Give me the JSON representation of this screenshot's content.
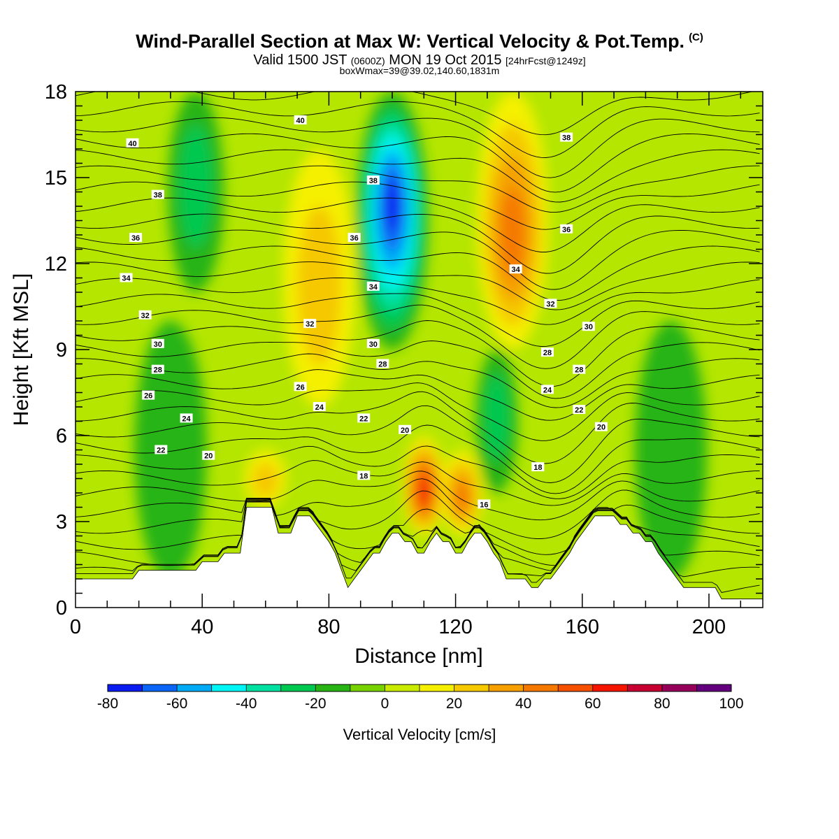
{
  "header": {
    "title": "Wind-Parallel Section at Max W: Vertical Velocity & Pot.Temp.",
    "copyright": "(C)",
    "valid_a": "Valid 1500 JST",
    "valid_b": "(0600Z)",
    "valid_c": "MON 19 Oct 2015",
    "valid_d": "[24hrFcst@1249z]",
    "box_info": "boxWmax=39@39.02,140.60,1831m"
  },
  "chart_data": {
    "type": "heatmap",
    "xlabel": "Distance [nm]",
    "ylabel": "Height [Kft MSL]",
    "xlim": [
      0,
      217
    ],
    "ylim": [
      0,
      18
    ],
    "x_ticks": [
      0,
      40,
      80,
      120,
      160,
      200
    ],
    "y_ticks": [
      0,
      3,
      6,
      9,
      12,
      15,
      18
    ],
    "colorbar": {
      "title": "Vertical Velocity [cm/s]",
      "levels": [
        -80,
        -70,
        -60,
        -50,
        -40,
        -30,
        -20,
        -10,
        0,
        10,
        20,
        30,
        40,
        50,
        60,
        70,
        80,
        90,
        100
      ],
      "tick_labels": [
        "-80",
        "-60",
        "-40",
        "-20",
        "0",
        "20",
        "40",
        "60",
        "80",
        "100"
      ],
      "tick_values": [
        -80,
        -60,
        -40,
        -20,
        0,
        20,
        40,
        60,
        80,
        100
      ],
      "colors": [
        "#0a1cf0",
        "#0a64f5",
        "#00aaf5",
        "#00f5f5",
        "#00e0a0",
        "#00c850",
        "#28b414",
        "#78d200",
        "#c8eb00",
        "#f5f000",
        "#f5c800",
        "#f5a000",
        "#f57800",
        "#f55000",
        "#f51400",
        "#c80032",
        "#96005a",
        "#64007d"
      ]
    },
    "terrain_kft": {
      "x": [
        0,
        18,
        20,
        38,
        40,
        45,
        47,
        52,
        54,
        62,
        64,
        68,
        70,
        74,
        76,
        78,
        80,
        82,
        84,
        86,
        88,
        90,
        92,
        94,
        96,
        98,
        100,
        102,
        104,
        106,
        108,
        110,
        112,
        114,
        116,
        118,
        120,
        122,
        124,
        126,
        128,
        130,
        132,
        134,
        136,
        138,
        140,
        142,
        144,
        146,
        148,
        150,
        152,
        154,
        156,
        158,
        160,
        162,
        164,
        166,
        168,
        170,
        172,
        174,
        176,
        178,
        180,
        182,
        184,
        186,
        188,
        190,
        192,
        194,
        196,
        198,
        200,
        202,
        204,
        206,
        210,
        217
      ],
      "h": [
        1.0,
        1.0,
        1.3,
        1.3,
        1.6,
        1.6,
        1.9,
        1.9,
        3.5,
        3.5,
        2.6,
        2.6,
        3.2,
        3.2,
        2.9,
        2.6,
        2.3,
        1.9,
        1.3,
        0.7,
        1.0,
        1.3,
        1.6,
        1.9,
        1.9,
        2.3,
        2.6,
        2.6,
        2.3,
        2.3,
        1.9,
        1.9,
        2.3,
        2.6,
        2.3,
        2.3,
        1.9,
        1.9,
        2.3,
        2.6,
        2.6,
        2.3,
        1.9,
        1.6,
        1.0,
        1.0,
        1.0,
        1.0,
        0.7,
        0.7,
        1.0,
        1.0,
        1.3,
        1.6,
        1.9,
        2.3,
        2.6,
        2.9,
        3.2,
        3.2,
        3.2,
        3.2,
        2.9,
        2.9,
        2.6,
        2.6,
        2.3,
        2.3,
        1.9,
        1.6,
        1.3,
        1.0,
        0.7,
        0.7,
        0.7,
        0.7,
        0.7,
        0.7,
        0.3,
        0.3,
        0.3,
        0.3
      ]
    },
    "vertical_velocity_features": [
      {
        "center_nm": 100,
        "height_kft": [
          9,
          18
        ],
        "peak_cms": -70
      },
      {
        "center_nm": 138,
        "height_kft": [
          9,
          18
        ],
        "peak_cms": 40
      },
      {
        "center_nm": 110,
        "height_kft": [
          2.5,
          6
        ],
        "peak_cms": 60
      },
      {
        "center_nm": 122,
        "height_kft": [
          2.5,
          5.5
        ],
        "peak_cms": 40
      },
      {
        "center_nm": 77,
        "height_kft": [
          7,
          16
        ],
        "peak_cms": 20
      },
      {
        "center_nm": 60,
        "height_kft": [
          3.5,
          5.5
        ],
        "peak_cms": 20
      },
      {
        "center_nm": 30,
        "height_kft": [
          1,
          10
        ],
        "peak_cms": -15
      },
      {
        "center_nm": 38,
        "height_kft": [
          11,
          18
        ],
        "peak_cms": -20
      },
      {
        "center_nm": 133,
        "height_kft": [
          4,
          9
        ],
        "peak_cms": -25
      },
      {
        "center_nm": 188,
        "height_kft": [
          1,
          10
        ],
        "peak_cms": -15
      }
    ],
    "theta_contour_labels": [
      {
        "text": "40",
        "x": 18,
        "y": 16.2
      },
      {
        "text": "40",
        "x": 71,
        "y": 17.0
      },
      {
        "text": "38",
        "x": 26,
        "y": 14.4
      },
      {
        "text": "38",
        "x": 94,
        "y": 14.9
      },
      {
        "text": "38",
        "x": 155,
        "y": 16.4
      },
      {
        "text": "36",
        "x": 19,
        "y": 12.9
      },
      {
        "text": "36",
        "x": 88,
        "y": 12.9
      },
      {
        "text": "36",
        "x": 155,
        "y": 13.2
      },
      {
        "text": "34",
        "x": 16,
        "y": 11.5
      },
      {
        "text": "34",
        "x": 94,
        "y": 11.2
      },
      {
        "text": "34",
        "x": 139,
        "y": 11.8
      },
      {
        "text": "32",
        "x": 22,
        "y": 10.2
      },
      {
        "text": "32",
        "x": 74,
        "y": 9.9
      },
      {
        "text": "32",
        "x": 150,
        "y": 10.6
      },
      {
        "text": "30",
        "x": 26,
        "y": 9.2
      },
      {
        "text": "30",
        "x": 94,
        "y": 9.2
      },
      {
        "text": "30",
        "x": 162,
        "y": 9.8
      },
      {
        "text": "28",
        "x": 26,
        "y": 8.3
      },
      {
        "text": "28",
        "x": 97,
        "y": 8.5
      },
      {
        "text": "28",
        "x": 149,
        "y": 8.9
      },
      {
        "text": "28",
        "x": 159,
        "y": 8.3
      },
      {
        "text": "26",
        "x": 23,
        "y": 7.4
      },
      {
        "text": "26",
        "x": 71,
        "y": 7.7
      },
      {
        "text": "24",
        "x": 35,
        "y": 6.6
      },
      {
        "text": "24",
        "x": 77,
        "y": 7.0
      },
      {
        "text": "24",
        "x": 149,
        "y": 7.6
      },
      {
        "text": "22",
        "x": 27,
        "y": 5.5
      },
      {
        "text": "22",
        "x": 91,
        "y": 6.6
      },
      {
        "text": "22",
        "x": 159,
        "y": 6.9
      },
      {
        "text": "20",
        "x": 42,
        "y": 5.3
      },
      {
        "text": "20",
        "x": 104,
        "y": 6.2
      },
      {
        "text": "20",
        "x": 166,
        "y": 6.3
      },
      {
        "text": "18",
        "x": 91,
        "y": 4.6
      },
      {
        "text": "18",
        "x": 146,
        "y": 4.9
      },
      {
        "text": "16",
        "x": 129,
        "y": 3.6
      }
    ]
  }
}
